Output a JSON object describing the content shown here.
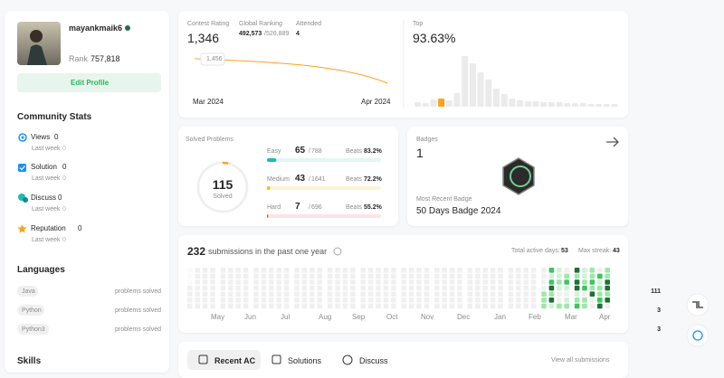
{
  "profile": {
    "username": "mayankmaik6",
    "rank_label": "Rank",
    "rank": "757,818",
    "edit_button": "Edit Profile"
  },
  "community_stats": {
    "title": "Community Stats",
    "items": [
      {
        "label": "Views",
        "value": 0,
        "last_week_label": "Last week",
        "last_week": 0
      },
      {
        "label": "Solution",
        "value": 0,
        "last_week_label": "Last week",
        "last_week": 0
      },
      {
        "label": "Discuss",
        "value": 0,
        "last_week_label": "Last week",
        "last_week": 0
      },
      {
        "label": "Reputation",
        "value": 0,
        "last_week_label": "Last week",
        "last_week": 0
      }
    ]
  },
  "languages": {
    "title": "Languages",
    "items": [
      {
        "name": "Java",
        "count": 111,
        "suffix": "problems solved"
      },
      {
        "name": "Python",
        "count": 3,
        "suffix": "problems solved"
      },
      {
        "name": "Python3",
        "count": 3,
        "suffix": "problems solved"
      }
    ]
  },
  "skills": {
    "title": "Skills"
  },
  "contest": {
    "rating_label": "Contest Rating",
    "rating": "1,346",
    "ranking_label": "Global Ranking",
    "ranking": "492,573",
    "ranking_total": "/526,889",
    "attended_label": "Attended",
    "attended": 4,
    "tooltip": "1,456",
    "x_start": "Mar 2024",
    "x_end": "Apr 2024"
  },
  "top": {
    "label": "Top",
    "value": "93.63%"
  },
  "solved": {
    "title": "Solved Problems",
    "count": 115,
    "count_label": "Solved",
    "difficulties": [
      {
        "name": "Easy",
        "solved": 65,
        "separator": "/",
        "total": 788,
        "beats_label": "Beats",
        "beats": "83.2%",
        "color": "#1cbaba",
        "track": "#e3f5f5"
      },
      {
        "name": "Medium",
        "solved": 43,
        "separator": "/",
        "total": 1641,
        "beats_label": "Beats",
        "beats": "72.2%",
        "color": "#ffb700",
        "track": "#fff3d6"
      },
      {
        "name": "Hard",
        "solved": 7,
        "separator": "/",
        "total": 696,
        "beats_label": "Beats",
        "beats": "55.2%",
        "color": "#f63737",
        "track": "#fde3e3"
      }
    ]
  },
  "badges": {
    "label": "Badges",
    "count": 1,
    "recent_label": "Most Recent Badge",
    "recent": "50 Days Badge 2024"
  },
  "submissions": {
    "count": 232,
    "text": "submissions in the past one year",
    "active_label": "Total active days:",
    "active": 53,
    "streak_label": "Max streak:",
    "streak": 43,
    "months": [
      "May",
      "Jun",
      "Jul",
      "Aug",
      "Sep",
      "Oct",
      "Nov",
      "Dec",
      "Jan",
      "Feb",
      "Mar",
      "Apr"
    ]
  },
  "tabs": {
    "items": [
      "Recent AC",
      "Solutions",
      "Discuss"
    ],
    "view_all": "View all submissions"
  }
}
